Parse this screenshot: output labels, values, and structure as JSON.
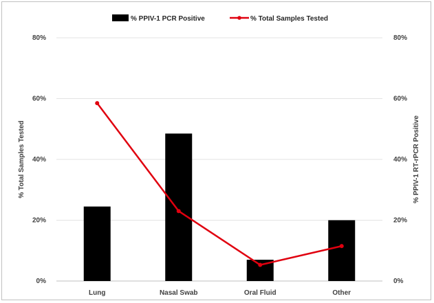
{
  "chart_data": {
    "type": "bar",
    "title": "",
    "categories": [
      "Lung",
      "Nasal Swab",
      "Oral Fluid",
      "Other"
    ],
    "series": [
      {
        "name": "% PPIV-1 PCR Positive",
        "type": "bar",
        "axis": "right",
        "color": "#000000",
        "values": [
          24.5,
          48.5,
          7,
          20
        ]
      },
      {
        "name": "% Total Samples Tested",
        "type": "line",
        "axis": "left",
        "color": "#e0000f",
        "values": [
          58.5,
          23,
          5.3,
          11.5
        ]
      }
    ],
    "ylabel_left": "% Total Samples Tested",
    "ylabel_right": "% PPIV-1 RT-rPCR Positive",
    "ylim": [
      0,
      80
    ],
    "yticks": [
      "0%",
      "20%",
      "40%",
      "60%",
      "80%"
    ],
    "grid": true,
    "legend": "top-center"
  }
}
